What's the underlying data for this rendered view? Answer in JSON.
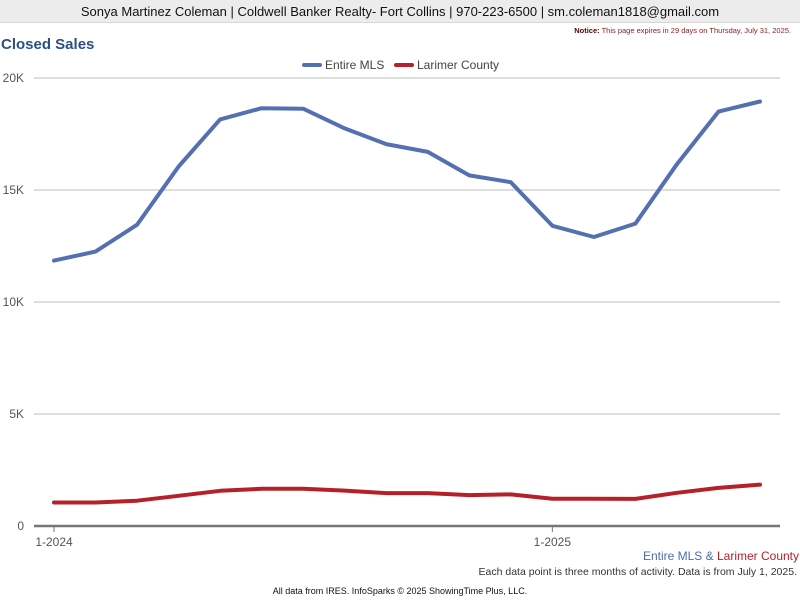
{
  "header": {
    "contact_line": "Sonya Martinez Coleman | Coldwell Banker Realty- Fort Collins | 970-223-6500 | sm.coleman1818@gmail.com"
  },
  "page": {
    "title": "Closed Sales",
    "notice_label": "Notice:",
    "notice_text": "This page expires in 29 days on Thursday, July 31, 2025."
  },
  "footer": {
    "legend_series_1": "Entire MLS",
    "legend_amp": " & ",
    "legend_series_2": "Larimer County",
    "note": "Each data point is three months of activity. Data is from July 1, 2025.",
    "credits": "All data from IRES. InfoSparks © 2025 ShowingTime Plus, LLC."
  },
  "colors": {
    "entire_mls": "#5470b3",
    "larimer_county": "#b5202a",
    "grid": "#bdbdbd",
    "axis": "#777777"
  },
  "chart_data": {
    "type": "line",
    "title": "Closed Sales",
    "legend_position": "top-center",
    "grid": true,
    "ylim": [
      0,
      20000
    ],
    "yticks": [
      0,
      5000,
      10000,
      15000,
      20000
    ],
    "ytick_labels": [
      "0",
      "5K",
      "10K",
      "15K",
      "20K"
    ],
    "x_count": 18,
    "xtick_labels": [
      {
        "index": 0,
        "label": "1-2024"
      },
      {
        "index": 12,
        "label": "1-2025"
      }
    ],
    "series": [
      {
        "name": "Entire MLS",
        "color": "#5470b3",
        "values": [
          11850,
          12250,
          13450,
          16050,
          18150,
          18650,
          18630,
          17750,
          17050,
          16700,
          15650,
          15350,
          13400,
          12900,
          13500,
          16150,
          18500,
          18950
        ]
      },
      {
        "name": "Larimer County",
        "color": "#b5202a",
        "values": [
          1050,
          1050,
          1130,
          1350,
          1570,
          1660,
          1660,
          1580,
          1470,
          1470,
          1380,
          1410,
          1220,
          1220,
          1210,
          1480,
          1700,
          1850
        ]
      }
    ]
  }
}
